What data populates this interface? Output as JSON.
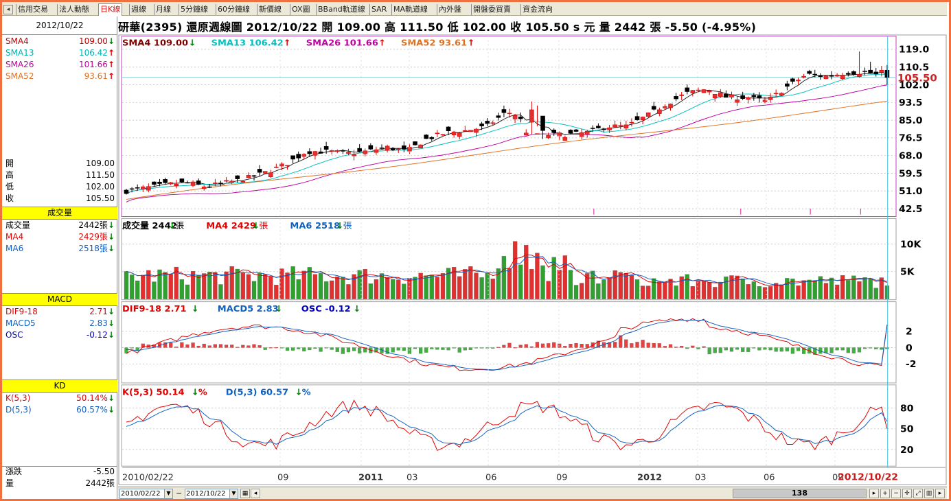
{
  "tabs": [
    "信用交易",
    "法人動態",
    "日K線",
    "週線",
    "月線",
    "5分鐘線",
    "60分鐘線",
    "新價線",
    "OX圖",
    "BBand軌道線",
    "SAR",
    "MA軌道線",
    "內外盤",
    "開盤委買賣",
    "資金流向"
  ],
  "active_tab": "日K線",
  "header": {
    "title": "研華(2395)  還原週線圖  2012/10/22  開 109.00  高 111.50  低 102.00  收 105.50 s 元  量 2442 張  -5.50 (-4.95%)"
  },
  "left": {
    "date": "2012/10/22",
    "sma": [
      {
        "name": "SMA4",
        "value": "109.00",
        "dir": "down",
        "color": "#c00000"
      },
      {
        "name": "SMA13",
        "value": "106.42",
        "dir": "up",
        "color": "#00b0b0"
      },
      {
        "name": "SMA26",
        "value": "101.66",
        "dir": "up",
        "color": "#c000a0"
      },
      {
        "name": "SMA52",
        "value": "93.61",
        "dir": "up",
        "color": "#e07020"
      }
    ],
    "ohlc": [
      {
        "name": "開",
        "value": "109.00"
      },
      {
        "name": "高",
        "value": "111.50"
      },
      {
        "name": "低",
        "value": "102.00"
      },
      {
        "name": "收",
        "value": "105.50"
      }
    ],
    "volume_title": "成交量",
    "volume": [
      {
        "name": "成交量",
        "value": "2442張",
        "dir": "down",
        "color": "#000"
      },
      {
        "name": "MA4",
        "value": "2429張",
        "dir": "down",
        "color": "#e00000"
      },
      {
        "name": "MA6",
        "value": "2518張",
        "dir": "down",
        "color": "#1060c0"
      }
    ],
    "macd_title": "MACD",
    "macd": [
      {
        "name": "DIF9-18",
        "value": "2.71",
        "dir": "down",
        "color": "#e00000"
      },
      {
        "name": "MACD5",
        "value": "2.83",
        "dir": "down",
        "color": "#1060c0"
      },
      {
        "name": "OSC",
        "value": "-0.12",
        "dir": "down",
        "color": "#0000c0"
      }
    ],
    "kd_title": "KD",
    "kd": [
      {
        "name": "K(5,3)",
        "value": "50.14%",
        "dir": "down",
        "color": "#e00000"
      },
      {
        "name": "D(5,3)",
        "value": "60.57%",
        "dir": "down",
        "color": "#1060c0"
      }
    ],
    "change": [
      {
        "name": "漲跌",
        "value": "-5.50"
      },
      {
        "name": "量",
        "value": "2442張"
      }
    ]
  },
  "price_panel": {
    "legend": [
      {
        "text": "SMA4 109.00",
        "color": "#800000",
        "dir": "down"
      },
      {
        "text": "SMA13 106.42",
        "color": "#00c0c0",
        "dir": "up"
      },
      {
        "text": "SMA26 101.66",
        "color": "#c000a0",
        "dir": "up"
      },
      {
        "text": "SMA52 93.61",
        "color": "#e07020",
        "dir": "up"
      }
    ],
    "y_ticks": [
      "119.0",
      "110.5",
      "102.0",
      "93.5",
      "85.0",
      "76.5",
      "68.0",
      "59.5",
      "51.0",
      "42.5"
    ],
    "last_price": "105.50"
  },
  "volume_panel": {
    "legend": [
      {
        "text": "成交量 2442",
        "suffix": "張",
        "color": "#000",
        "dir": "down"
      },
      {
        "text": "MA4 2429",
        "suffix": "張",
        "color": "#e00000",
        "dir": "down"
      },
      {
        "text": "MA6 2518",
        "suffix": "張",
        "color": "#1060c0",
        "dir": "down"
      }
    ],
    "y_ticks": [
      "10K",
      "5K"
    ]
  },
  "macd_panel": {
    "legend": [
      {
        "text": "DIF9-18 2.71",
        "color": "#e00000",
        "dir": "down"
      },
      {
        "text": "MACD5 2.83",
        "color": "#1060c0",
        "dir": "down"
      },
      {
        "text": "OSC -0.12",
        "color": "#0000c0",
        "dir": "down"
      }
    ],
    "y_ticks": [
      "2",
      "0",
      "-2"
    ]
  },
  "kd_panel": {
    "legend": [
      {
        "text": "K(5,3) 50.14",
        "suffix": "%",
        "color": "#e00000",
        "dir": "down"
      },
      {
        "text": "D(5,3) 60.57",
        "suffix": "%",
        "color": "#1060c0",
        "dir": "down"
      }
    ],
    "y_ticks": [
      "80",
      "50",
      "20"
    ]
  },
  "x_axis": {
    "labels": [
      {
        "text": "2010/02/22",
        "bold": false
      },
      {
        "text": "09",
        "bold": false
      },
      {
        "text": "2011",
        "bold": true
      },
      {
        "text": "03",
        "bold": false
      },
      {
        "text": "06",
        "bold": false
      },
      {
        "text": "09",
        "bold": false
      },
      {
        "text": "2012",
        "bold": true
      },
      {
        "text": "03",
        "bold": false
      },
      {
        "text": "06",
        "bold": false
      },
      {
        "text": "09",
        "bold": false
      }
    ],
    "cursor_date": "2012/10/22"
  },
  "bottom": {
    "from_date": "2010/02/22",
    "tilde": "~",
    "to_date": "2012/10/22",
    "page_count": "138"
  },
  "chart_data": {
    "type": "candlestick",
    "title": "研華(2395) 還原週線圖",
    "weeks": 140,
    "last_bar": {
      "date": "2012/10/22",
      "open": 109.0,
      "high": 111.5,
      "low": 102.0,
      "close": 105.5,
      "volume": 2442
    },
    "close_anchors": [
      [
        0,
        51
      ],
      [
        10,
        54
      ],
      [
        15,
        55
      ],
      [
        20,
        53
      ],
      [
        25,
        55
      ],
      [
        30,
        57
      ],
      [
        35,
        60
      ],
      [
        40,
        64
      ],
      [
        45,
        70
      ],
      [
        50,
        70
      ],
      [
        55,
        69
      ],
      [
        60,
        70
      ],
      [
        65,
        72
      ],
      [
        70,
        70
      ],
      [
        75,
        76
      ],
      [
        80,
        79
      ],
      [
        85,
        80
      ],
      [
        90,
        82
      ],
      [
        95,
        89
      ],
      [
        98,
        87
      ],
      [
        100,
        79
      ],
      [
        105,
        78
      ],
      [
        110,
        78
      ],
      [
        115,
        79
      ],
      [
        120,
        82
      ],
      [
        125,
        82
      ],
      [
        130,
        87
      ],
      [
        135,
        93
      ],
      [
        140,
        98
      ],
      [
        145,
        100
      ],
      [
        150,
        96
      ],
      [
        155,
        96
      ],
      [
        160,
        94
      ],
      [
        165,
        101
      ],
      [
        170,
        107
      ],
      [
        175,
        106
      ],
      [
        180,
        108
      ],
      [
        185,
        108
      ],
      [
        190,
        105.5
      ]
    ],
    "volume_ylim": [
      0,
      12000
    ],
    "macd_ylim": [
      -4,
      4
    ],
    "kd_ylim": [
      0,
      100
    ],
    "price_ylim": [
      40,
      124
    ]
  }
}
